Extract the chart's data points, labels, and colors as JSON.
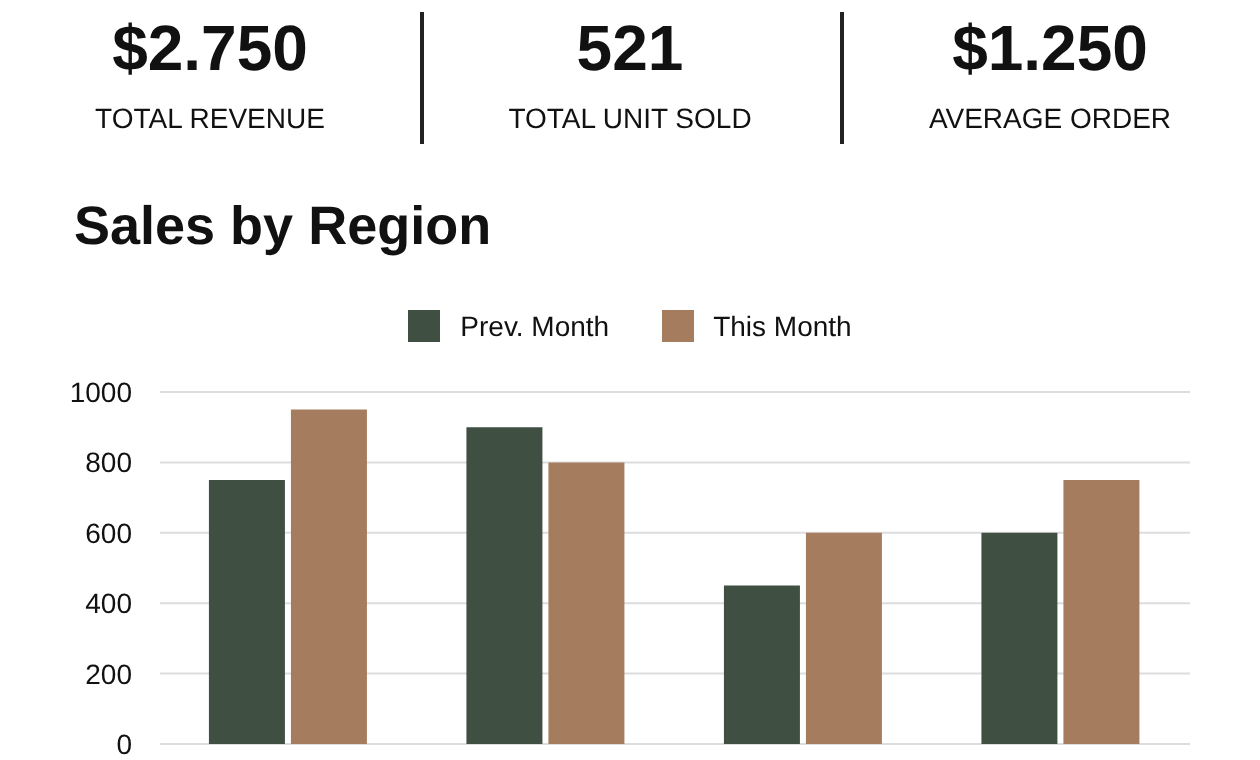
{
  "chart_data": [
    {
      "type": "other",
      "annotations": [
        "$2.750",
        "TOTAL REVENUE",
        "521",
        "TOTAL UNIT SOLD",
        "$1.250",
        "AVERAGE ORDER"
      ]
    },
    {
      "type": "bar",
      "title": "Sales by Region",
      "categories": [
        null,
        null,
        null,
        null
      ],
      "series": [
        {
          "name": "Prev. Month",
          "color": "#3f4f42",
          "values": [
            750,
            900,
            450,
            600
          ]
        },
        {
          "name": "This Month",
          "color": "#a67c5e",
          "values": [
            950,
            800,
            600,
            750
          ]
        }
      ],
      "ylim": [
        0,
        1000
      ],
      "yticks": [
        0,
        200,
        400,
        600,
        800,
        1000
      ],
      "grid": "y",
      "legend": "top",
      "tick_labels": "y"
    }
  ]
}
